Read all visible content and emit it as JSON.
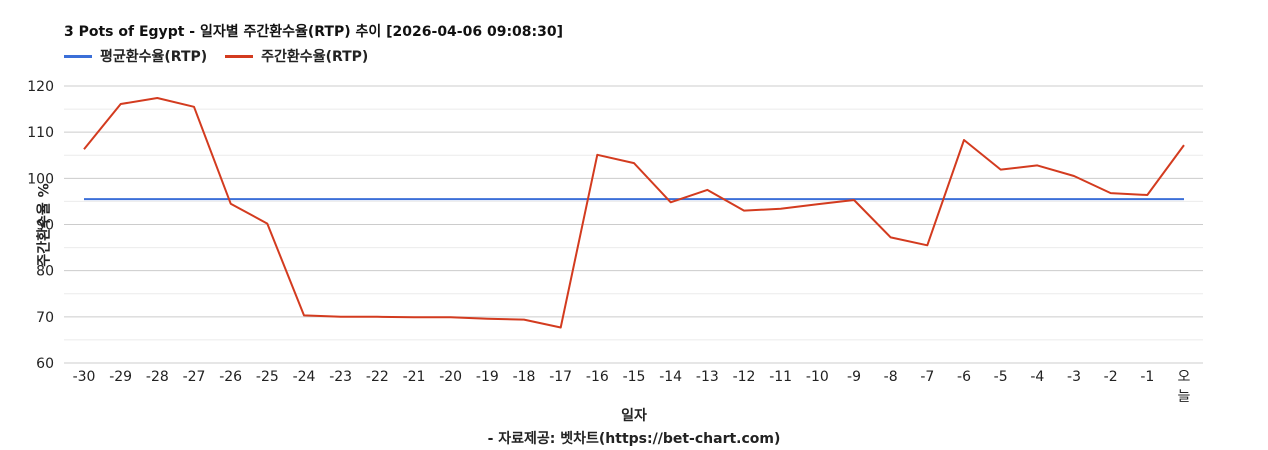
{
  "header": {
    "title": "3 Pots of Egypt - 일자별 주간환수율(RTP) 추이 [2026-04-06 09:08:30]"
  },
  "footer": {
    "source": "- 자료제공: 벳차트(https://bet-chart.com)"
  },
  "chart_data": {
    "type": "line",
    "title": "3 Pots of Egypt - 일자별 주간환수율(RTP) 추이 [2026-04-06 09:08:30]",
    "xlabel": "일자",
    "ylabel": "주간환수율 %",
    "ylim": [
      60,
      120
    ],
    "yticks": [
      60,
      70,
      80,
      90,
      100,
      110,
      120
    ],
    "grid": true,
    "legend_position": "top-left",
    "categories": [
      "-30",
      "-29",
      "-28",
      "-27",
      "-26",
      "-25",
      "-24",
      "-23",
      "-22",
      "-21",
      "-20",
      "-19",
      "-18",
      "-17",
      "-16",
      "-15",
      "-14",
      "-13",
      "-12",
      "-11",
      "-10",
      "-9",
      "-8",
      "-7",
      "-6",
      "-5",
      "-4",
      "-3",
      "-2",
      "-1",
      "오늘"
    ],
    "series": [
      {
        "name": "평균환수율(RTP)",
        "color": "#3b6fd8",
        "values": [
          95.5,
          95.5,
          95.5,
          95.5,
          95.5,
          95.5,
          95.5,
          95.5,
          95.5,
          95.5,
          95.5,
          95.5,
          95.5,
          95.5,
          95.5,
          95.5,
          95.5,
          95.5,
          95.5,
          95.5,
          95.5,
          95.5,
          95.5,
          95.5,
          95.5,
          95.5,
          95.5,
          95.5,
          95.5,
          95.5,
          95.5
        ]
      },
      {
        "name": "주간환수율(RTP)",
        "color": "#d33b1f",
        "values": [
          106.3,
          116.1,
          117.4,
          115.5,
          94.5,
          90.2,
          70.3,
          70.0,
          70.0,
          69.9,
          69.9,
          69.6,
          69.4,
          67.7,
          105.1,
          103.3,
          94.8,
          97.5,
          93.0,
          93.4,
          94.4,
          95.3,
          87.2,
          85.5,
          108.3,
          101.9,
          102.8,
          100.5,
          96.8,
          96.4,
          107.2
        ]
      }
    ]
  }
}
